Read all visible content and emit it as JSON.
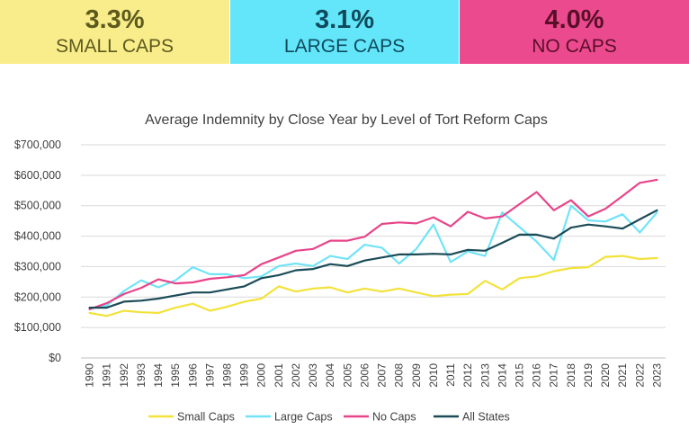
{
  "stats": [
    {
      "value": "3.3%",
      "label": "SMALL CAPS"
    },
    {
      "value": "3.1%",
      "label": "LARGE CAPS"
    },
    {
      "value": "4.0%",
      "label": "NO CAPS"
    }
  ],
  "chart_data": {
    "type": "line",
    "title": "Average Indemnity by Close Year by Level of Tort Reform Caps",
    "x": [
      1990,
      1991,
      1992,
      1993,
      1994,
      1995,
      1996,
      1997,
      1998,
      1999,
      2000,
      2001,
      2002,
      2003,
      2004,
      2005,
      2006,
      2007,
      2008,
      2009,
      2010,
      2011,
      2012,
      2013,
      2014,
      2015,
      2016,
      2017,
      2018,
      2019,
      2020,
      2021,
      2022,
      2023
    ],
    "x_tick_labels": [
      "1990",
      "1991",
      "1992",
      "1993",
      "1994",
      "1995",
      "1996",
      "1997",
      "1998",
      "1999",
      "2000",
      "2001",
      "2002",
      "2003",
      "2004",
      "2005",
      "2006",
      "2007",
      "2008",
      "2009",
      "2010",
      "2011",
      "2012",
      "2013",
      "2014",
      "2015",
      "2016",
      "2017",
      "2018",
      "2019",
      "2020",
      "2021",
      "2022",
      "2023"
    ],
    "ylim": [
      0,
      700000
    ],
    "y_ticks": [
      0,
      100000,
      200000,
      300000,
      400000,
      500000,
      600000,
      700000
    ],
    "y_tick_labels": [
      "$0",
      "$100,000",
      "$200,000",
      "$300,000",
      "$400,000",
      "$500,000",
      "$600,000",
      "$700,000"
    ],
    "grid": true,
    "legend_position": "bottom",
    "series": [
      {
        "name": "Small Caps",
        "color": "#f2e23a",
        "values": [
          148000,
          138000,
          155000,
          150000,
          148000,
          165000,
          178000,
          155000,
          168000,
          185000,
          195000,
          235000,
          218000,
          228000,
          232000,
          215000,
          228000,
          218000,
          228000,
          215000,
          203000,
          208000,
          210000,
          253000,
          225000,
          262000,
          268000,
          285000,
          295000,
          298000,
          332000,
          335000,
          325000,
          328000
        ]
      },
      {
        "name": "Large Caps",
        "color": "#71e3f7",
        "values": [
          162000,
          172000,
          220000,
          255000,
          232000,
          255000,
          298000,
          275000,
          275000,
          262000,
          268000,
          302000,
          310000,
          302000,
          335000,
          325000,
          372000,
          362000,
          310000,
          358000,
          438000,
          315000,
          350000,
          335000,
          478000,
          430000,
          382000,
          322000,
          500000,
          452000,
          448000,
          472000,
          412000,
          478000
        ]
      },
      {
        "name": "No Caps",
        "color": "#e8448a",
        "values": [
          160000,
          180000,
          210000,
          230000,
          258000,
          245000,
          248000,
          260000,
          265000,
          272000,
          308000,
          330000,
          352000,
          358000,
          385000,
          385000,
          398000,
          440000,
          445000,
          442000,
          462000,
          432000,
          480000,
          458000,
          465000,
          505000,
          545000,
          485000,
          518000,
          465000,
          490000,
          532000,
          575000,
          585000
        ]
      },
      {
        "name": "All States",
        "color": "#1b4b57",
        "values": [
          165000,
          165000,
          185000,
          188000,
          195000,
          205000,
          215000,
          215000,
          225000,
          235000,
          262000,
          272000,
          288000,
          292000,
          308000,
          302000,
          320000,
          330000,
          340000,
          340000,
          342000,
          340000,
          355000,
          352000,
          378000,
          405000,
          405000,
          392000,
          428000,
          438000,
          432000,
          425000,
          455000,
          485000
        ]
      }
    ]
  }
}
